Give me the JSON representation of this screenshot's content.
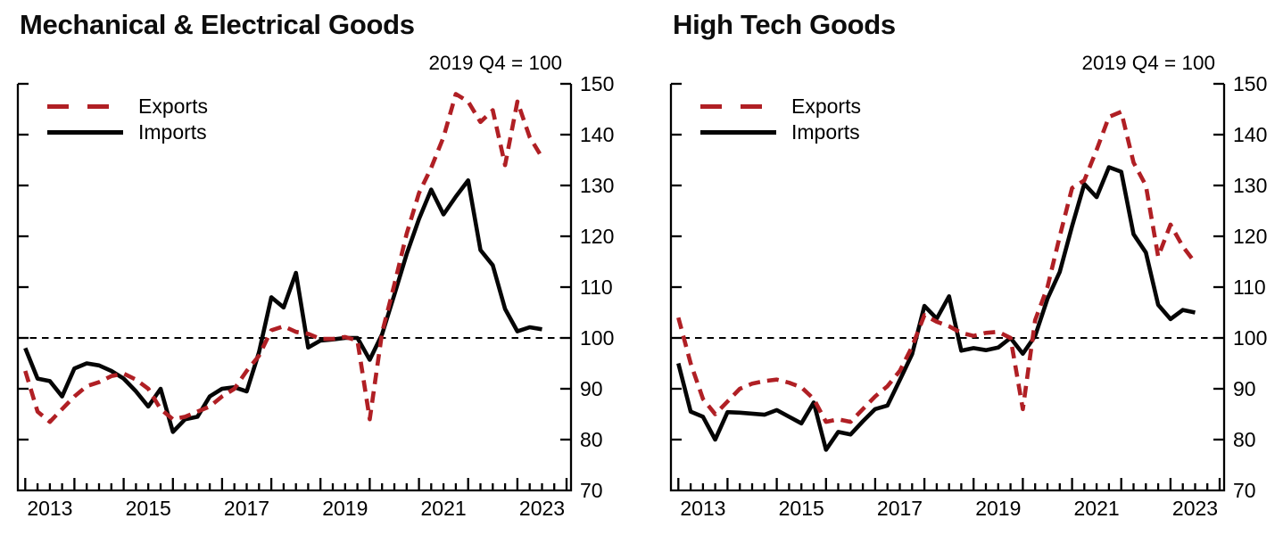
{
  "figure": {
    "background": "#ffffff",
    "y_axis_side": "right",
    "legend_position": "top-left-inside"
  },
  "colors": {
    "exports_line": "#b01f24",
    "imports_line": "#050505",
    "axis": "#000000",
    "baseline": "#000000"
  },
  "chart_data": [
    {
      "type": "line",
      "title": "Mechanical & Electrical Goods",
      "index_note": "2019 Q4 = 100",
      "x_freq": "quarterly",
      "x_labels": [
        "2013 Q1",
        "2013 Q2",
        "2013 Q3",
        "2013 Q4",
        "2014 Q1",
        "2014 Q2",
        "2014 Q3",
        "2014 Q4",
        "2015 Q1",
        "2015 Q2",
        "2015 Q3",
        "2015 Q4",
        "2016 Q1",
        "2016 Q2",
        "2016 Q3",
        "2016 Q4",
        "2017 Q1",
        "2017 Q2",
        "2017 Q3",
        "2017 Q4",
        "2018 Q1",
        "2018 Q2",
        "2018 Q3",
        "2018 Q4",
        "2019 Q1",
        "2019 Q2",
        "2019 Q3",
        "2019 Q4",
        "2020 Q1",
        "2020 Q2",
        "2020 Q3",
        "2020 Q4",
        "2021 Q1",
        "2021 Q2",
        "2021 Q3",
        "2021 Q4",
        "2022 Q1",
        "2022 Q2",
        "2022 Q3",
        "2022 Q4",
        "2023 Q1",
        "2023 Q2",
        "2023 Q3"
      ],
      "x_tick_years": [
        2013,
        2015,
        2017,
        2019,
        2021,
        2023
      ],
      "ylim": [
        70,
        150
      ],
      "y_ticks": [
        70,
        80,
        90,
        100,
        110,
        120,
        130,
        140,
        150
      ],
      "baseline": 100,
      "series": [
        {
          "name": "Exports",
          "style": "dashed",
          "color": "#b01f24",
          "values": [
            93.5,
            85.5,
            83.5,
            86,
            88.5,
            90.5,
            91.3,
            92.5,
            93,
            91.8,
            90,
            86,
            84,
            84.5,
            85.5,
            86.5,
            88.5,
            90,
            93.5,
            96.5,
            101.5,
            102.3,
            101.2,
            100.8,
            99.8,
            99.8,
            100.2,
            99.5,
            84,
            101,
            110.5,
            120.5,
            128.5,
            133.5,
            139.5,
            148,
            146.5,
            142.5,
            144.8,
            134,
            146.5,
            139.5,
            135.5
          ]
        },
        {
          "name": "Imports",
          "style": "solid",
          "color": "#050505",
          "values": [
            98,
            92,
            91.5,
            88.5,
            94,
            95,
            94.6,
            93.5,
            92,
            89.5,
            86.5,
            90,
            81.5,
            84,
            84.5,
            88.5,
            90,
            90.3,
            89.5,
            97.2,
            108,
            106,
            112.8,
            98.1,
            99.5,
            99.7,
            100,
            100,
            95.7,
            100.7,
            108.5,
            116.5,
            123.4,
            129.2,
            124.3,
            127.8,
            131,
            117.3,
            114.3,
            105.7,
            101.3,
            102.1,
            101.7
          ]
        }
      ]
    },
    {
      "type": "line",
      "title": "High Tech Goods",
      "index_note": "2019 Q4 = 100",
      "x_freq": "quarterly",
      "x_labels": [
        "2013 Q1",
        "2013 Q2",
        "2013 Q3",
        "2013 Q4",
        "2014 Q1",
        "2014 Q2",
        "2014 Q3",
        "2014 Q4",
        "2015 Q1",
        "2015 Q2",
        "2015 Q3",
        "2015 Q4",
        "2016 Q1",
        "2016 Q2",
        "2016 Q3",
        "2016 Q4",
        "2017 Q1",
        "2017 Q2",
        "2017 Q3",
        "2017 Q4",
        "2018 Q1",
        "2018 Q2",
        "2018 Q3",
        "2018 Q4",
        "2019 Q1",
        "2019 Q2",
        "2019 Q3",
        "2019 Q4",
        "2020 Q1",
        "2020 Q2",
        "2020 Q3",
        "2020 Q4",
        "2021 Q1",
        "2021 Q2",
        "2021 Q3",
        "2021 Q4",
        "2022 Q1",
        "2022 Q2",
        "2022 Q3",
        "2022 Q4",
        "2023 Q1",
        "2023 Q2",
        "2023 Q3"
      ],
      "x_tick_years": [
        2013,
        2015,
        2017,
        2019,
        2021,
        2023
      ],
      "ylim": [
        70,
        150
      ],
      "y_ticks": [
        70,
        80,
        90,
        100,
        110,
        120,
        130,
        140,
        150
      ],
      "baseline": 100,
      "series": [
        {
          "name": "Exports",
          "style": "dashed",
          "color": "#b01f24",
          "values": [
            104,
            95,
            88,
            85,
            87.5,
            90,
            91,
            91.5,
            91.8,
            91.2,
            90.3,
            88,
            83.5,
            84,
            83.5,
            86,
            88.5,
            90.5,
            93.5,
            98.3,
            104.5,
            103.2,
            102.3,
            101,
            100.4,
            101,
            101.2,
            100,
            86,
            103.5,
            110,
            120,
            129.5,
            131,
            137,
            143.5,
            144.5,
            134.5,
            130,
            116,
            122.3,
            118,
            114.8
          ]
        },
        {
          "name": "Imports",
          "style": "solid",
          "color": "#050505",
          "values": [
            95,
            85.5,
            84.5,
            80,
            85.4,
            85.3,
            85.1,
            84.9,
            85.8,
            84.5,
            83.2,
            87.3,
            78,
            81.5,
            81,
            83.6,
            86,
            86.7,
            91.7,
            96.8,
            106.3,
            103.8,
            108.2,
            97.5,
            98,
            97.6,
            98.1,
            100,
            96.9,
            100.4,
            107.7,
            113,
            122,
            130.3,
            127.7,
            133.6,
            132.7,
            120.4,
            116.8,
            106.5,
            103.7,
            105.5,
            105
          ]
        }
      ]
    }
  ]
}
